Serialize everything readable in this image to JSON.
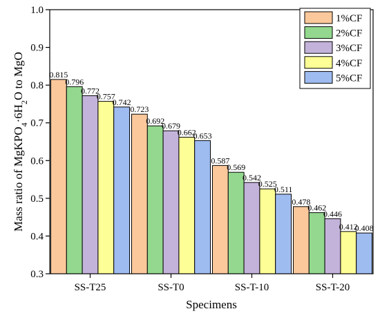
{
  "chart_data": {
    "type": "bar",
    "categories": [
      "SS-T25",
      "SS-T0",
      "SS-T-10",
      "SS-T-20"
    ],
    "series": [
      {
        "name": "1%CF",
        "color": "#FBC89B",
        "values": [
          0.815,
          0.723,
          0.587,
          0.478
        ]
      },
      {
        "name": "2%CF",
        "color": "#93D88E",
        "values": [
          0.796,
          0.692,
          0.569,
          0.462
        ]
      },
      {
        "name": "3%CF",
        "color": "#C3B3DA",
        "values": [
          0.772,
          0.679,
          0.542,
          0.446
        ]
      },
      {
        "name": "4%CF",
        "color": "#FEFE96",
        "values": [
          0.757,
          0.662,
          0.525,
          0.412
        ]
      },
      {
        "name": "5%CF",
        "color": "#9FBCF1",
        "values": [
          0.742,
          0.653,
          0.511,
          0.408
        ]
      }
    ],
    "value_labels": [
      [
        "0.815",
        "0.723",
        "0.587",
        "0.478"
      ],
      [
        "0.796",
        "0.692",
        "0.569",
        "0.462"
      ],
      [
        "0.772",
        "0.679",
        "0.542",
        "0.446"
      ],
      [
        "0.757",
        "0.662",
        "0.525",
        "0.412"
      ],
      [
        "0.742",
        "0.653",
        "0.511",
        "0.408"
      ]
    ],
    "xlabel": "Specimens",
    "ylabel": {
      "main": "Mass ratio of MgKPO",
      "sub1": "4",
      "mid": "·6H",
      "sub2": "2",
      "tail": "O to MgO"
    },
    "ylim": [
      0.3,
      1.0
    ],
    "yticks": [
      "0.3",
      "0.4",
      "0.5",
      "0.6",
      "0.7",
      "0.8",
      "0.9",
      "1.0"
    ],
    "legend_position": "top-right",
    "grid": false
  }
}
